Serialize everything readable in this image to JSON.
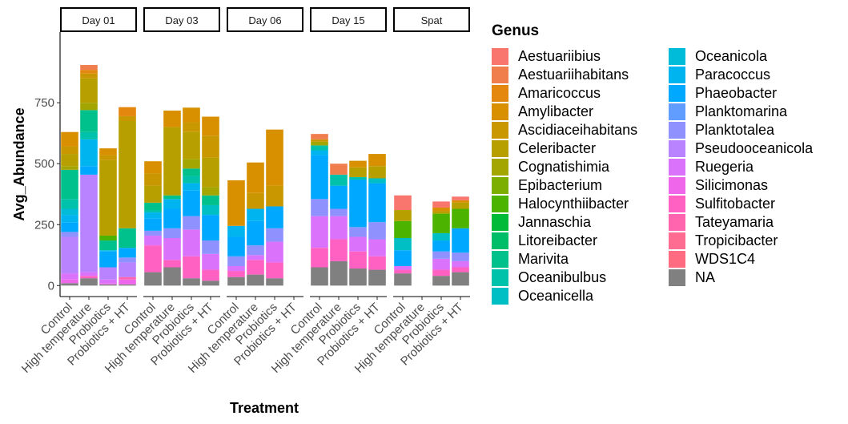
{
  "chart_data": {
    "type": "bar",
    "stacked": true,
    "faceted": true,
    "facets": [
      "Day 01",
      "Day 03",
      "Day 06",
      "Day 15",
      "Spat"
    ],
    "categories": [
      "Control",
      "High temperature",
      "Probiotics",
      "Probiotics + HT"
    ],
    "xlabel": "Treatment",
    "ylabel": "Avg_Abundance",
    "ylim": [
      -45,
      1040
    ],
    "yticks": [
      0,
      250,
      500,
      750
    ],
    "legend_title": "Genus",
    "legend_position": "right",
    "genera": [
      "Aestuariibius",
      "Aestuariihabitans",
      "Amaricoccus",
      "Amylibacter",
      "Ascidiaceihabitans",
      "Celeribacter",
      "Cognatishimia",
      "Epibacterium",
      "Halocynthiibacter",
      "Jannaschia",
      "Litoreibacter",
      "Marivita",
      "Oceanibulbus",
      "Oceanicella",
      "Oceanicola",
      "Paracoccus",
      "Phaeobacter",
      "Planktomarina",
      "Planktotalea",
      "Pseudooceanicola",
      "Ruegeria",
      "Silicimonas",
      "Sulfitobacter",
      "Tateyamaria",
      "Tropicibacter",
      "WDS1C4",
      "NA"
    ],
    "colors": [
      "#F8766D",
      "#F07E4D",
      "#E4870F",
      "#D89000",
      "#C99700",
      "#B79F00",
      "#A3A500",
      "#7CAE00",
      "#4CB400",
      "#00BA38",
      "#00BE67",
      "#00C08B",
      "#00C1A9",
      "#00BFC4",
      "#00BCD8",
      "#00B4F0",
      "#00A9FF",
      "#619CFF",
      "#8F91FF",
      "#B983FF",
      "#DB72FB",
      "#F066EA",
      "#FF61C3",
      "#FF65AE",
      "#FF6C92",
      "#FF6C82",
      "#808080"
    ],
    "bars": [
      {
        "facet": "Day 01",
        "category": "Control",
        "total": 630,
        "segments": [
          [
            "NA",
            10
          ],
          [
            "Silicimonas",
            15
          ],
          [
            "Ruegeria",
            25
          ],
          [
            "Pseudooceanicola",
            150
          ],
          [
            "Planktotalea",
            20
          ],
          [
            "Phaeobacter",
            40
          ],
          [
            "Paracoccus",
            30
          ],
          [
            "Oceanicola",
            25
          ],
          [
            "Oceanibulbus",
            40
          ],
          [
            "Marivita",
            120
          ],
          [
            "Cognatishimia",
            15
          ],
          [
            "Celeribacter",
            50
          ],
          [
            "Ascidiaceihabitans",
            30
          ],
          [
            "Amylibacter",
            60
          ]
        ]
      },
      {
        "facet": "Day 01",
        "category": "High temperature",
        "total": 905,
        "segments": [
          [
            "NA",
            30
          ],
          [
            "Sulfitobacter",
            10
          ],
          [
            "Ruegeria",
            15
          ],
          [
            "Pseudooceanicola",
            400
          ],
          [
            "Phaeobacter",
            35
          ],
          [
            "Paracoccus",
            110
          ],
          [
            "Oceanibulbus",
            30
          ],
          [
            "Marivita",
            90
          ],
          [
            "Cognatishimia",
            30
          ],
          [
            "Celeribacter",
            100
          ],
          [
            "Ascidiaceihabitans",
            20
          ],
          [
            "Amaricoccus",
            15
          ],
          [
            "Aestuariihabitans",
            20
          ]
        ]
      },
      {
        "facet": "Day 01",
        "category": "Probiotics",
        "total": 563,
        "segments": [
          [
            "NA",
            5
          ],
          [
            "Silicimonas",
            5
          ],
          [
            "Ruegeria",
            15
          ],
          [
            "Pseudooceanicola",
            50
          ],
          [
            "Phaeobacter",
            65
          ],
          [
            "Paracoccus",
            5
          ],
          [
            "Marivita",
            40
          ],
          [
            "Halocynthiibacter",
            20
          ],
          [
            "Celeribacter",
            310
          ],
          [
            "Ascidiaceihabitans",
            20
          ],
          [
            "Amylibacter",
            28
          ]
        ]
      },
      {
        "facet": "Day 01",
        "category": "Probiotics + HT",
        "total": 732,
        "segments": [
          [
            "NA",
            5
          ],
          [
            "Silicimonas",
            20
          ],
          [
            "Tateyamaria",
            10
          ],
          [
            "Pseudooceanicola",
            60
          ],
          [
            "Planktotalea",
            20
          ],
          [
            "Phaeobacter",
            40
          ],
          [
            "Marivita",
            80
          ],
          [
            "Celeribacter",
            440
          ],
          [
            "Ascidiaceihabitans",
            20
          ],
          [
            "Amaricoccus",
            37
          ]
        ]
      },
      {
        "facet": "Day 03",
        "category": "Control",
        "total": 510,
        "segments": [
          [
            "NA",
            55
          ],
          [
            "Sulfitobacter",
            110
          ],
          [
            "Ruegeria",
            40
          ],
          [
            "Planktotalea",
            20
          ],
          [
            "Phaeobacter",
            50
          ],
          [
            "Paracoccus",
            25
          ],
          [
            "Oceanibulbus",
            10
          ],
          [
            "Marivita",
            30
          ],
          [
            "Celeribacter",
            70
          ],
          [
            "Ascidiaceihabitans",
            50
          ],
          [
            "Amylibacter",
            50
          ]
        ]
      },
      {
        "facet": "Day 03",
        "category": "High temperature",
        "total": 718,
        "segments": [
          [
            "NA",
            75
          ],
          [
            "Sulfitobacter",
            30
          ],
          [
            "Ruegeria",
            90
          ],
          [
            "Planktotalea",
            40
          ],
          [
            "Phaeobacter",
            80
          ],
          [
            "Paracoccus",
            40
          ],
          [
            "Marivita",
            15
          ],
          [
            "Celeribacter",
            280
          ],
          [
            "Amylibacter",
            68
          ]
        ]
      },
      {
        "facet": "Day 03",
        "category": "Probiotics",
        "total": 730,
        "segments": [
          [
            "NA",
            30
          ],
          [
            "Sulfitobacter",
            90
          ],
          [
            "Ruegeria",
            110
          ],
          [
            "Planktotalea",
            55
          ],
          [
            "Phaeobacter",
            105
          ],
          [
            "Paracoccus",
            30
          ],
          [
            "Oceanibulbus",
            30
          ],
          [
            "Marivita",
            30
          ],
          [
            "Cognatishimia",
            40
          ],
          [
            "Celeribacter",
            110
          ],
          [
            "Ascidiaceihabitans",
            40
          ],
          [
            "Amylibacter",
            60
          ]
        ]
      },
      {
        "facet": "Day 03",
        "category": "Probiotics + HT",
        "total": 693,
        "segments": [
          [
            "NA",
            20
          ],
          [
            "Sulfitobacter",
            45
          ],
          [
            "Ruegeria",
            65
          ],
          [
            "Planktotalea",
            55
          ],
          [
            "Phaeobacter",
            105
          ],
          [
            "Oceanicella",
            40
          ],
          [
            "Marivita",
            40
          ],
          [
            "Cognatishimia",
            35
          ],
          [
            "Celeribacter",
            120
          ],
          [
            "Ascidiaceihabitans",
            90
          ],
          [
            "Amylibacter",
            78
          ]
        ]
      },
      {
        "facet": "Day 06",
        "category": "Control",
        "total": 432,
        "segments": [
          [
            "NA",
            35
          ],
          [
            "Sulfitobacter",
            25
          ],
          [
            "Ruegeria",
            20
          ],
          [
            "Planktotalea",
            40
          ],
          [
            "Phaeobacter",
            80
          ],
          [
            "Paracoccus",
            45
          ],
          [
            "Amylibacter",
            187
          ]
        ]
      },
      {
        "facet": "Day 06",
        "category": "High temperature",
        "total": 505,
        "segments": [
          [
            "NA",
            45
          ],
          [
            "Sulfitobacter",
            60
          ],
          [
            "Ruegeria",
            20
          ],
          [
            "Planktotalea",
            40
          ],
          [
            "Phaeobacter",
            100
          ],
          [
            "Paracoccus",
            50
          ],
          [
            "Ascidiaceihabitans",
            65
          ],
          [
            "Amylibacter",
            125
          ]
        ]
      },
      {
        "facet": "Day 06",
        "category": "Probiotics",
        "total": 640,
        "segments": [
          [
            "NA",
            30
          ],
          [
            "Sulfitobacter",
            65
          ],
          [
            "Ruegeria",
            85
          ],
          [
            "Planktotalea",
            55
          ],
          [
            "Phaeobacter",
            90
          ],
          [
            "Ascidiaceihabitans",
            85
          ],
          [
            "Amylibacter",
            230
          ]
        ]
      },
      {
        "facet": "Day 15",
        "category": "Control",
        "total": 622,
        "segments": [
          [
            "NA",
            75
          ],
          [
            "Sulfitobacter",
            80
          ],
          [
            "Ruegeria",
            130
          ],
          [
            "Planktotalea",
            70
          ],
          [
            "Phaeobacter",
            180
          ],
          [
            "Paracoccus",
            20
          ],
          [
            "Oceanibulbus",
            20
          ],
          [
            "Cognatishimia",
            15
          ],
          [
            "Ascidiaceihabitans",
            10
          ],
          [
            "Aestuariihabitans",
            22
          ]
        ]
      },
      {
        "facet": "Day 15",
        "category": "High temperature",
        "total": 500,
        "segments": [
          [
            "NA",
            100
          ],
          [
            "Sulfitobacter",
            90
          ],
          [
            "Ruegeria",
            95
          ],
          [
            "Planktotalea",
            30
          ],
          [
            "Phaeobacter",
            95
          ],
          [
            "Oceanibulbus",
            45
          ],
          [
            "Aestuariihabitans",
            45
          ]
        ]
      },
      {
        "facet": "Day 15",
        "category": "Probiotics",
        "total": 512,
        "segments": [
          [
            "NA",
            70
          ],
          [
            "Sulfitobacter",
            70
          ],
          [
            "Ruegeria",
            60
          ],
          [
            "Planktotalea",
            40
          ],
          [
            "Phaeobacter",
            195
          ],
          [
            "Oceanibulbus",
            10
          ],
          [
            "Celeribacter",
            40
          ],
          [
            "Amylibacter",
            27
          ]
        ]
      },
      {
        "facet": "Day 15",
        "category": "Probiotics + HT",
        "total": 540,
        "segments": [
          [
            "NA",
            65
          ],
          [
            "Sulfitobacter",
            55
          ],
          [
            "Ruegeria",
            70
          ],
          [
            "Planktotalea",
            70
          ],
          [
            "Phaeobacter",
            160
          ],
          [
            "Oceanicella",
            20
          ],
          [
            "Celeribacter",
            50
          ],
          [
            "Amylibacter",
            50
          ]
        ]
      },
      {
        "facet": "Spat",
        "category": "Control",
        "total": 370,
        "segments": [
          [
            "NA",
            50
          ],
          [
            "Sulfitobacter",
            15
          ],
          [
            "Ruegeria",
            15
          ],
          [
            "Phaeobacter",
            65
          ],
          [
            "Oceanicella",
            50
          ],
          [
            "Halocynthiibacter",
            70
          ],
          [
            "Celeribacter",
            45
          ],
          [
            "Aestuariibius",
            60
          ]
        ]
      },
      {
        "facet": "Spat",
        "category": "Probiotics",
        "total": 345,
        "segments": [
          [
            "NA",
            40
          ],
          [
            "Sulfitobacter",
            25
          ],
          [
            "Ruegeria",
            45
          ],
          [
            "Planktotalea",
            30
          ],
          [
            "Phaeobacter",
            45
          ],
          [
            "Oceanicella",
            30
          ],
          [
            "Halocynthiibacter",
            80
          ],
          [
            "Celeribacter",
            10
          ],
          [
            "Amylibacter",
            15
          ],
          [
            "Aestuariibius",
            25
          ]
        ]
      },
      {
        "facet": "Spat",
        "category": "Probiotics + HT",
        "total": 365,
        "segments": [
          [
            "NA",
            55
          ],
          [
            "Sulfitobacter",
            20
          ],
          [
            "Ruegeria",
            25
          ],
          [
            "Planktotalea",
            35
          ],
          [
            "Phaeobacter",
            100
          ],
          [
            "Halocynthiibacter",
            80
          ],
          [
            "Celeribacter",
            25
          ],
          [
            "Amylibacter",
            10
          ],
          [
            "Aestuariibius",
            15
          ]
        ]
      }
    ]
  }
}
